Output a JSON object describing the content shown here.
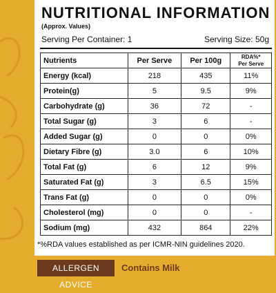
{
  "header": {
    "title": "NUTRITIONAL INFORMATION",
    "subtitle": "(Approx. Values)"
  },
  "serving": {
    "per_container": "Serving Per Container: 1",
    "size": "Serving Size: 50g"
  },
  "table": {
    "columns": [
      "Nutrients",
      "Per Serve",
      "Per 100g",
      "RDA%*\nPer Serve"
    ],
    "rows": [
      [
        "Energy (kcal)",
        "218",
        "435",
        "11%"
      ],
      [
        "Protein(g)",
        "5",
        "9.5",
        "9%"
      ],
      [
        "Carbohydrate (g)",
        "36",
        "72",
        "-"
      ],
      [
        "Total Sugar (g)",
        "3",
        "6",
        "-"
      ],
      [
        "Added Sugar (g)",
        "0",
        "0",
        "0%"
      ],
      [
        "Dietary Fibre (g)",
        "3.0",
        "6",
        "10%"
      ],
      [
        "Total Fat (g)",
        "6",
        "12",
        "9%"
      ],
      [
        "Saturated Fat (g)",
        "3",
        "6.5",
        "15%"
      ],
      [
        "Trans Fat (g)",
        "0",
        "0",
        "0%"
      ],
      [
        "Cholesterol (mg)",
        "0",
        "0",
        "-"
      ],
      [
        "Sodium (mg)",
        "432",
        "864",
        "22%"
      ]
    ]
  },
  "footnote": "*%RDA values established as per ICMR-NIN guidelines 2020.",
  "allergen": {
    "label": "ALLERGEN ADVICE",
    "text": "Contains Milk"
  }
}
